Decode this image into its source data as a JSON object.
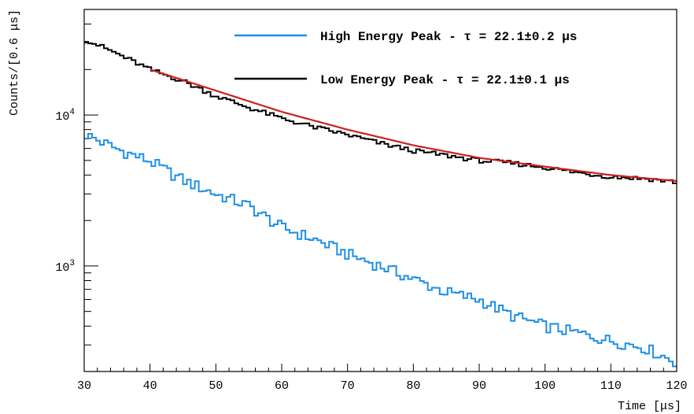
{
  "chart_data": {
    "type": "line",
    "xlabel": "Time [μs]",
    "ylabel": "Counts/[0.6 μs]",
    "xlim": [
      30,
      120
    ],
    "ylim": [
      200,
      50000
    ],
    "yscale": "log",
    "xticks": [
      30,
      40,
      50,
      60,
      70,
      80,
      90,
      100,
      110,
      120
    ],
    "yticks": [
      {
        "value": 1000,
        "label": "10",
        "exp": "3"
      },
      {
        "value": 10000,
        "label": "10",
        "exp": "4"
      }
    ],
    "grid": false,
    "legend_position": "top-right",
    "series": [
      {
        "name": "High Energy Peak - τ = 22.1±0.2 μs",
        "color": "#1e90e6",
        "style": "step",
        "x": [
          30,
          35,
          40,
          45,
          50,
          55,
          60,
          65,
          70,
          75,
          80,
          85,
          90,
          95,
          100,
          105,
          110,
          115,
          120
        ],
        "y": [
          7500,
          5950,
          4950,
          3700,
          3000,
          2500,
          1800,
          1500,
          1200,
          1000,
          820,
          670,
          600,
          470,
          400,
          360,
          320,
          290,
          230
        ]
      },
      {
        "name": "Low Energy Peak - τ = 22.1±0.1 μs",
        "color": "#000000",
        "style": "step",
        "x": [
          30,
          35,
          40,
          45,
          50,
          55,
          60,
          65,
          70,
          75,
          80,
          85,
          90,
          95,
          100,
          105,
          110,
          115,
          120
        ],
        "y": [
          32000,
          25500,
          20000,
          16800,
          13400,
          11200,
          9500,
          8300,
          7400,
          6500,
          5800,
          5400,
          5000,
          4800,
          4500,
          4150,
          3900,
          3800,
          3600
        ]
      }
    ],
    "fit": {
      "color": "#cc2020",
      "x": [
        40,
        50,
        60,
        70,
        80,
        90,
        100,
        110,
        120
      ],
      "y": [
        20000,
        14500,
        10500,
        8000,
        6300,
        5200,
        4550,
        4000,
        3650
      ]
    }
  }
}
